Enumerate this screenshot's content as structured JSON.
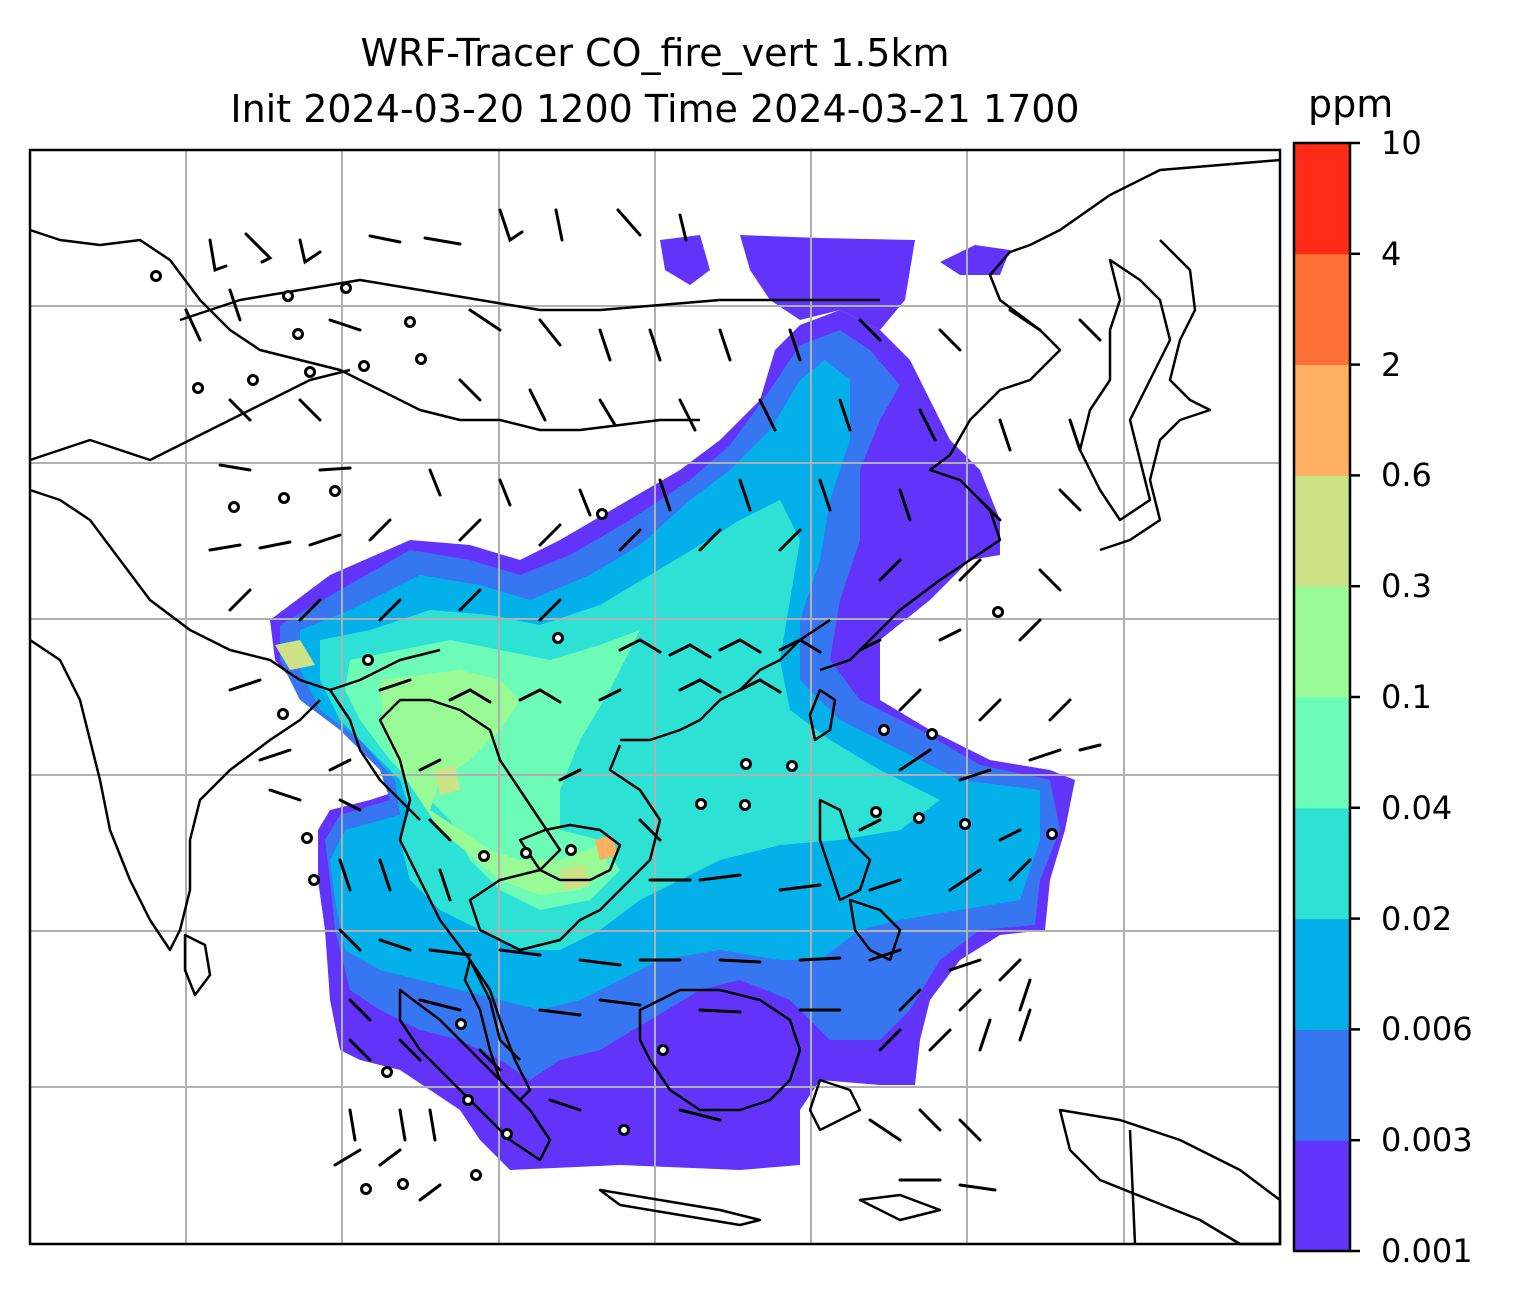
{
  "title": {
    "line1": "WRF-Tracer CO_fire_vert 1.5km",
    "line2": "Init 2024-03-20 1200 Time 2024-03-21 1700"
  },
  "colorbar": {
    "unit": "ppm",
    "ticks": [
      "0.001",
      "0.003",
      "0.006",
      "0.02",
      "0.04",
      "0.1",
      "0.3",
      "0.6",
      "2",
      "4",
      "10"
    ],
    "colors": [
      "#6233f9",
      "#3676f1",
      "#04b0ea",
      "#2de2d5",
      "#6cfcb7",
      "#99fb96",
      "#cde286",
      "#feb062",
      "#ff7136",
      "#ff2b17"
    ]
  },
  "map": {
    "graticule": "on",
    "wind_barbs": "on",
    "coastline_color": "#000000",
    "grid_color": "#b0b0b0"
  }
}
